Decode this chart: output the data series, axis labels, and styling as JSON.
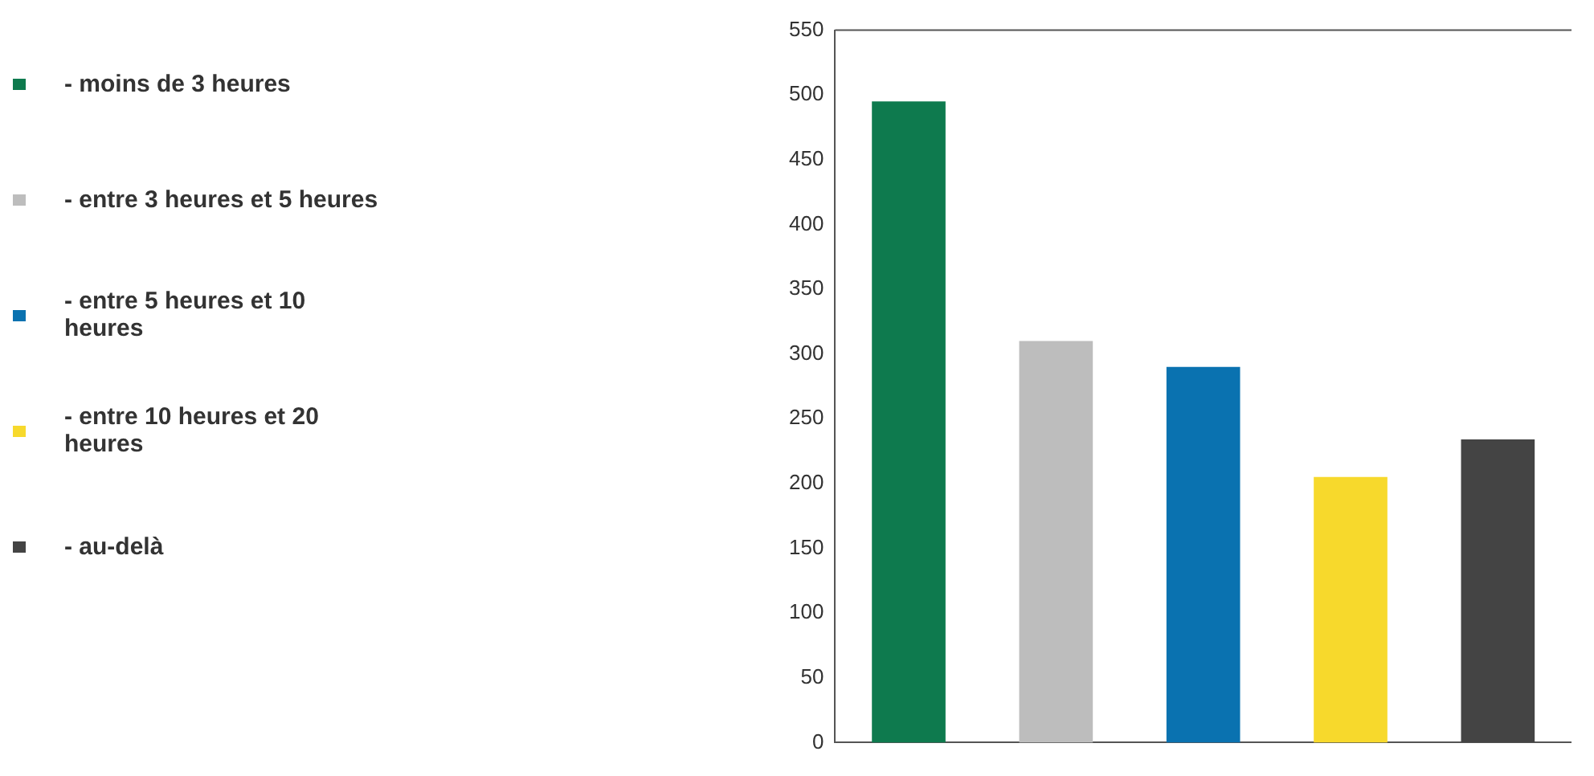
{
  "chart_data": {
    "type": "bar",
    "categories": [
      null,
      null,
      null,
      null,
      null
    ],
    "series": [
      {
        "name": "- moins de 3 heures",
        "color": "#0e7a4e",
        "values": [
          495,
          null,
          null,
          null,
          null
        ]
      },
      {
        "name": "- entre 3 heures et 5 heures",
        "color": "#bdbdbd",
        "values": [
          null,
          310,
          null,
          null,
          null
        ]
      },
      {
        "name": "- entre 5 heures et 10 heures",
        "color": "#0a72b0",
        "values": [
          null,
          null,
          290,
          null,
          null
        ]
      },
      {
        "name": "- entre 10 heures et 20 heures",
        "color": "#f7d92c",
        "values": [
          null,
          null,
          null,
          205,
          null
        ]
      },
      {
        "name": "- au-delà",
        "color": "#444444",
        "values": [
          null,
          null,
          null,
          null,
          234
        ]
      }
    ],
    "ylim": [
      0,
      550
    ],
    "yticks": [
      0,
      50,
      100,
      150,
      200,
      250,
      300,
      350,
      400,
      450,
      500,
      550
    ],
    "grid": false,
    "legend": "left"
  }
}
